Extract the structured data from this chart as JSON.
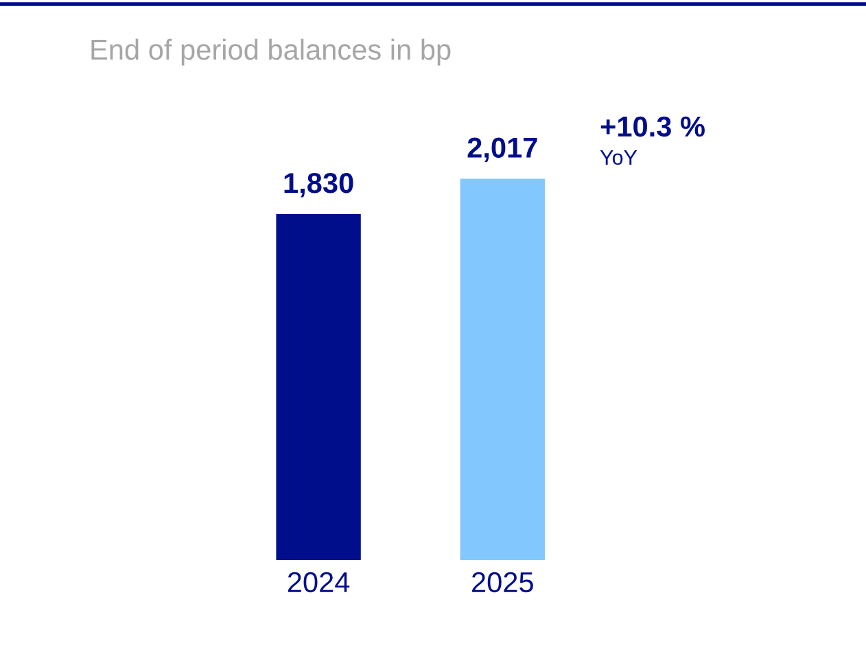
{
  "chart_data": {
    "type": "bar",
    "title": "End of period balances in bp",
    "categories": [
      "2024",
      "2025"
    ],
    "values": [
      1830,
      2017
    ],
    "colors": [
      "#000e8c",
      "#82c8ff"
    ],
    "value_labels": [
      "1,830",
      "2,017"
    ],
    "annotations": [
      "+10.3 %",
      "YoY"
    ],
    "grid": false
  }
}
